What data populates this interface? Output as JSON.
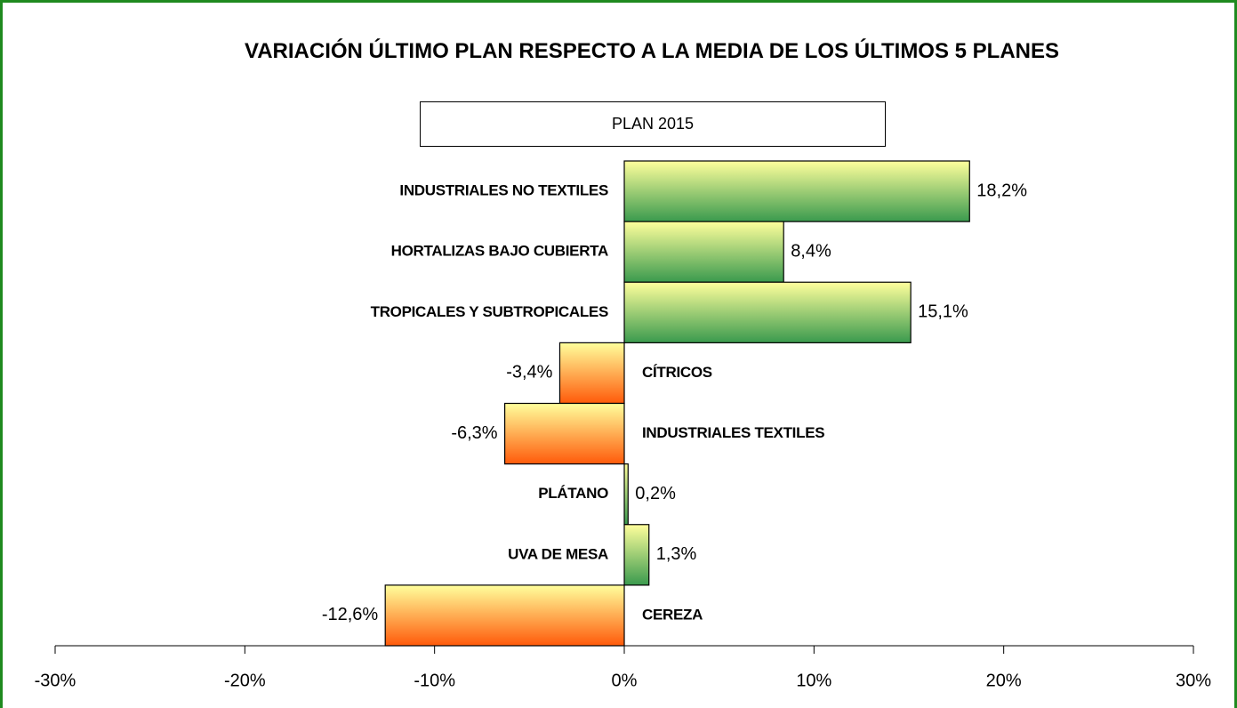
{
  "chart_data": {
    "type": "bar",
    "orientation": "horizontal",
    "title": "VARIACIÓN ÚLTIMO PLAN RESPECTO A LA MEDIA DE LOS ÚLTIMOS 5 PLANES",
    "subtitle": "PLAN 2015",
    "categories": [
      "INDUSTRIALES NO TEXTILES",
      "HORTALIZAS BAJO CUBIERTA",
      "TROPICALES Y SUBTROPICALES",
      "CÍTRICOS",
      "INDUSTRIALES TEXTILES",
      "PLÁTANO",
      "UVA DE MESA",
      "CEREZA"
    ],
    "values": [
      18.2,
      8.4,
      15.1,
      -3.4,
      -6.3,
      0.2,
      1.3,
      -12.6
    ],
    "value_labels": [
      "18,2%",
      "8,4%",
      "15,1%",
      "-3,4%",
      "-6,3%",
      "0,2%",
      "1,3%",
      "-12,6%"
    ],
    "positive_color": [
      "#ffff9c",
      "#3a9a4e"
    ],
    "negative_color": [
      "#ffff9c",
      "#ff5a0a"
    ],
    "xlim": [
      -30,
      30
    ],
    "xticks": [
      {
        "value": -30,
        "label": "-30%"
      },
      {
        "value": -20,
        "label": "-20%"
      },
      {
        "value": -10,
        "label": "-10%"
      },
      {
        "value": 0,
        "label": "0%"
      },
      {
        "value": 10,
        "label": "10%"
      },
      {
        "value": 20,
        "label": "20%"
      },
      {
        "value": 30,
        "label": "30%"
      }
    ]
  }
}
